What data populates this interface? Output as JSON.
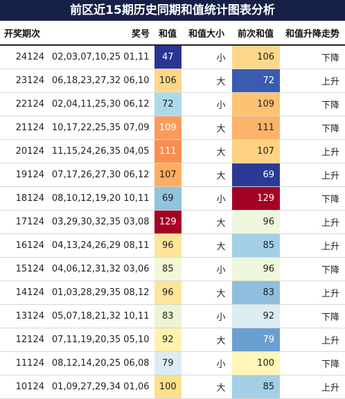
{
  "title": "前区近15期历史同期和值统计图表分析",
  "headers": {
    "period": "开奖期次",
    "numbers": "奖号",
    "sum": "和值",
    "size": "和值大小",
    "prev_sum": "前次和值",
    "trend": "和值升降走势"
  },
  "rows": [
    {
      "period": "24124",
      "numbers": "02,03,07,10,25 01,11",
      "sum": "47",
      "size": "小",
      "prev_sum": "106",
      "trend": "下降",
      "sum_bg": "#2b3594",
      "sum_fg": "#ffffff",
      "prev_bg": "#fed88a",
      "prev_fg": "#222222"
    },
    {
      "period": "23124",
      "numbers": "06,18,23,27,32 06,10",
      "sum": "106",
      "size": "大",
      "prev_sum": "72",
      "trend": "上升",
      "sum_bg": "#fed88a",
      "sum_fg": "#222222",
      "prev_bg": "#3a5bb0",
      "prev_fg": "#ffffff"
    },
    {
      "period": "22124",
      "numbers": "02,04,11,25,30 06,12",
      "sum": "72",
      "size": "小",
      "prev_sum": "109",
      "trend": "下降",
      "sum_bg": "#abd9e9",
      "sum_fg": "#222222",
      "prev_bg": "#fdc274",
      "prev_fg": "#222222"
    },
    {
      "period": "21124",
      "numbers": "10,17,22,25,35 07,09",
      "sum": "109",
      "size": "大",
      "prev_sum": "111",
      "trend": "下降",
      "sum_bg": "#fb9a5a",
      "sum_fg": "#ffffff",
      "prev_bg": "#fcb36a",
      "prev_fg": "#222222"
    },
    {
      "period": "20124",
      "numbers": "11,15,24,26,35 04,05",
      "sum": "111",
      "size": "大",
      "prev_sum": "107",
      "trend": "上升",
      "sum_bg": "#f98e52",
      "sum_fg": "#ffffff",
      "prev_bg": "#fdd283",
      "prev_fg": "#222222"
    },
    {
      "period": "19124",
      "numbers": "07,17,26,27,30 06,12",
      "sum": "107",
      "size": "大",
      "prev_sum": "69",
      "trend": "上升",
      "sum_bg": "#fdae61",
      "sum_fg": "#222222",
      "prev_bg": "#2c3a97",
      "prev_fg": "#ffffff"
    },
    {
      "period": "18124",
      "numbers": "08,10,12,19,20 10,11",
      "sum": "69",
      "size": "小",
      "prev_sum": "129",
      "trend": "下降",
      "sum_bg": "#90c4dd",
      "sum_fg": "#222222",
      "prev_bg": "#a50026",
      "prev_fg": "#ffffff"
    },
    {
      "period": "17124",
      "numbers": "03,29,30,32,35 03,08",
      "sum": "129",
      "size": "大",
      "prev_sum": "96",
      "trend": "上升",
      "sum_bg": "#a50026",
      "sum_fg": "#ffffff",
      "prev_bg": "#eef7dc",
      "prev_fg": "#222222"
    },
    {
      "period": "16124",
      "numbers": "04,13,24,26,29 08,11",
      "sum": "96",
      "size": "大",
      "prev_sum": "85",
      "trend": "上升",
      "sum_bg": "#fee59b",
      "sum_fg": "#222222",
      "prev_bg": "#a3cfe6",
      "prev_fg": "#222222"
    },
    {
      "period": "15124",
      "numbers": "04,06,12,31,32 03,06",
      "sum": "85",
      "size": "小",
      "prev_sum": "96",
      "trend": "下降",
      "sum_bg": "#f0f8d8",
      "sum_fg": "#222222",
      "prev_bg": "#eef7dc",
      "prev_fg": "#222222"
    },
    {
      "period": "14124",
      "numbers": "01,03,28,29,35 08,12",
      "sum": "96",
      "size": "大",
      "prev_sum": "83",
      "trend": "上升",
      "sum_bg": "#fee59b",
      "sum_fg": "#222222",
      "prev_bg": "#8fbfdc",
      "prev_fg": "#222222"
    },
    {
      "period": "13124",
      "numbers": "05,07,18,21,32 10,11",
      "sum": "83",
      "size": "小",
      "prev_sum": "92",
      "trend": "下降",
      "sum_bg": "#e9f5d3",
      "sum_fg": "#222222",
      "prev_bg": "#dcecf3",
      "prev_fg": "#222222"
    },
    {
      "period": "12124",
      "numbers": "07,11,19,20,35 05,10",
      "sum": "92",
      "size": "大",
      "prev_sum": "79",
      "trend": "上升",
      "sum_bg": "#fef2ac",
      "sum_fg": "#222222",
      "prev_bg": "#6b9fd0",
      "prev_fg": "#ffffff"
    },
    {
      "period": "11124",
      "numbers": "08,12,14,20,25 06,08",
      "sum": "79",
      "size": "小",
      "prev_sum": "100",
      "trend": "下降",
      "sum_bg": "#dcecf3",
      "sum_fg": "#222222",
      "prev_bg": "#fff7b8",
      "prev_fg": "#222222"
    },
    {
      "period": "10124",
      "numbers": "01,09,27,29,34 01,06",
      "sum": "100",
      "size": "大",
      "prev_sum": "85",
      "trend": "上升",
      "sum_bg": "#fee08b",
      "sum_fg": "#222222",
      "prev_bg": "#a3cfe6",
      "prev_fg": "#222222"
    }
  ]
}
